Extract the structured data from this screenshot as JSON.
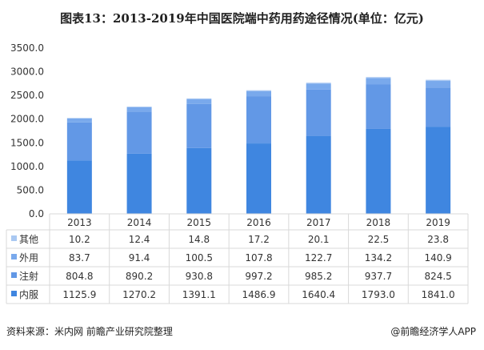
{
  "title": "图表13：2013-2019年中国医院端中药用药途径情况(单位：亿元)",
  "source": "资料来源：米内网 前瞻产业研究院整理",
  "brand": "@前瞻经济学人APP",
  "chart_data": {
    "type": "bar",
    "stacked": true,
    "title": "图表13：2013-2019年中国医院端中药用药途径情况(单位：亿元)",
    "categories": [
      "2013",
      "2014",
      "2015",
      "2016",
      "2017",
      "2018",
      "2019"
    ],
    "ylim": [
      0,
      3500
    ],
    "yticks": [
      "0.0",
      "500.0",
      "1000.0",
      "1500.0",
      "2000.0",
      "2500.0",
      "3000.0",
      "3500.0"
    ],
    "ytick_values": [
      0,
      500,
      1000,
      1500,
      2000,
      2500,
      3000,
      3500
    ],
    "grid": false,
    "legend_placement": "data-table-below",
    "series": [
      {
        "name": "其他",
        "color": "#a9c8f2",
        "values": [
          10.2,
          12.4,
          14.8,
          17.2,
          20.1,
          22.5,
          23.8
        ],
        "labels": [
          "10.2",
          "12.4",
          "14.8",
          "17.2",
          "20.1",
          "22.5",
          "23.8"
        ]
      },
      {
        "name": "外用",
        "color": "#79a9ec",
        "values": [
          83.7,
          91.4,
          100.5,
          107.8,
          122.7,
          134.2,
          140.9
        ],
        "labels": [
          "83.7",
          "91.4",
          "100.5",
          "107.8",
          "122.7",
          "134.2",
          "140.9"
        ]
      },
      {
        "name": "注射",
        "color": "#6298e6",
        "values": [
          804.8,
          890.2,
          930.8,
          997.2,
          985.2,
          937.7,
          824.5
        ],
        "labels": [
          "804.8",
          "890.2",
          "930.8",
          "997.2",
          "985.2",
          "937.7",
          "824.5"
        ]
      },
      {
        "name": "内服",
        "color": "#3f86e0",
        "values": [
          1125.9,
          1270.2,
          1391.1,
          1486.9,
          1640.4,
          1793.0,
          1841.0
        ],
        "labels": [
          "1125.9",
          "1270.2",
          "1391.1",
          "1486.9",
          "1640.4",
          "1793.0",
          "1841.0"
        ]
      }
    ]
  }
}
